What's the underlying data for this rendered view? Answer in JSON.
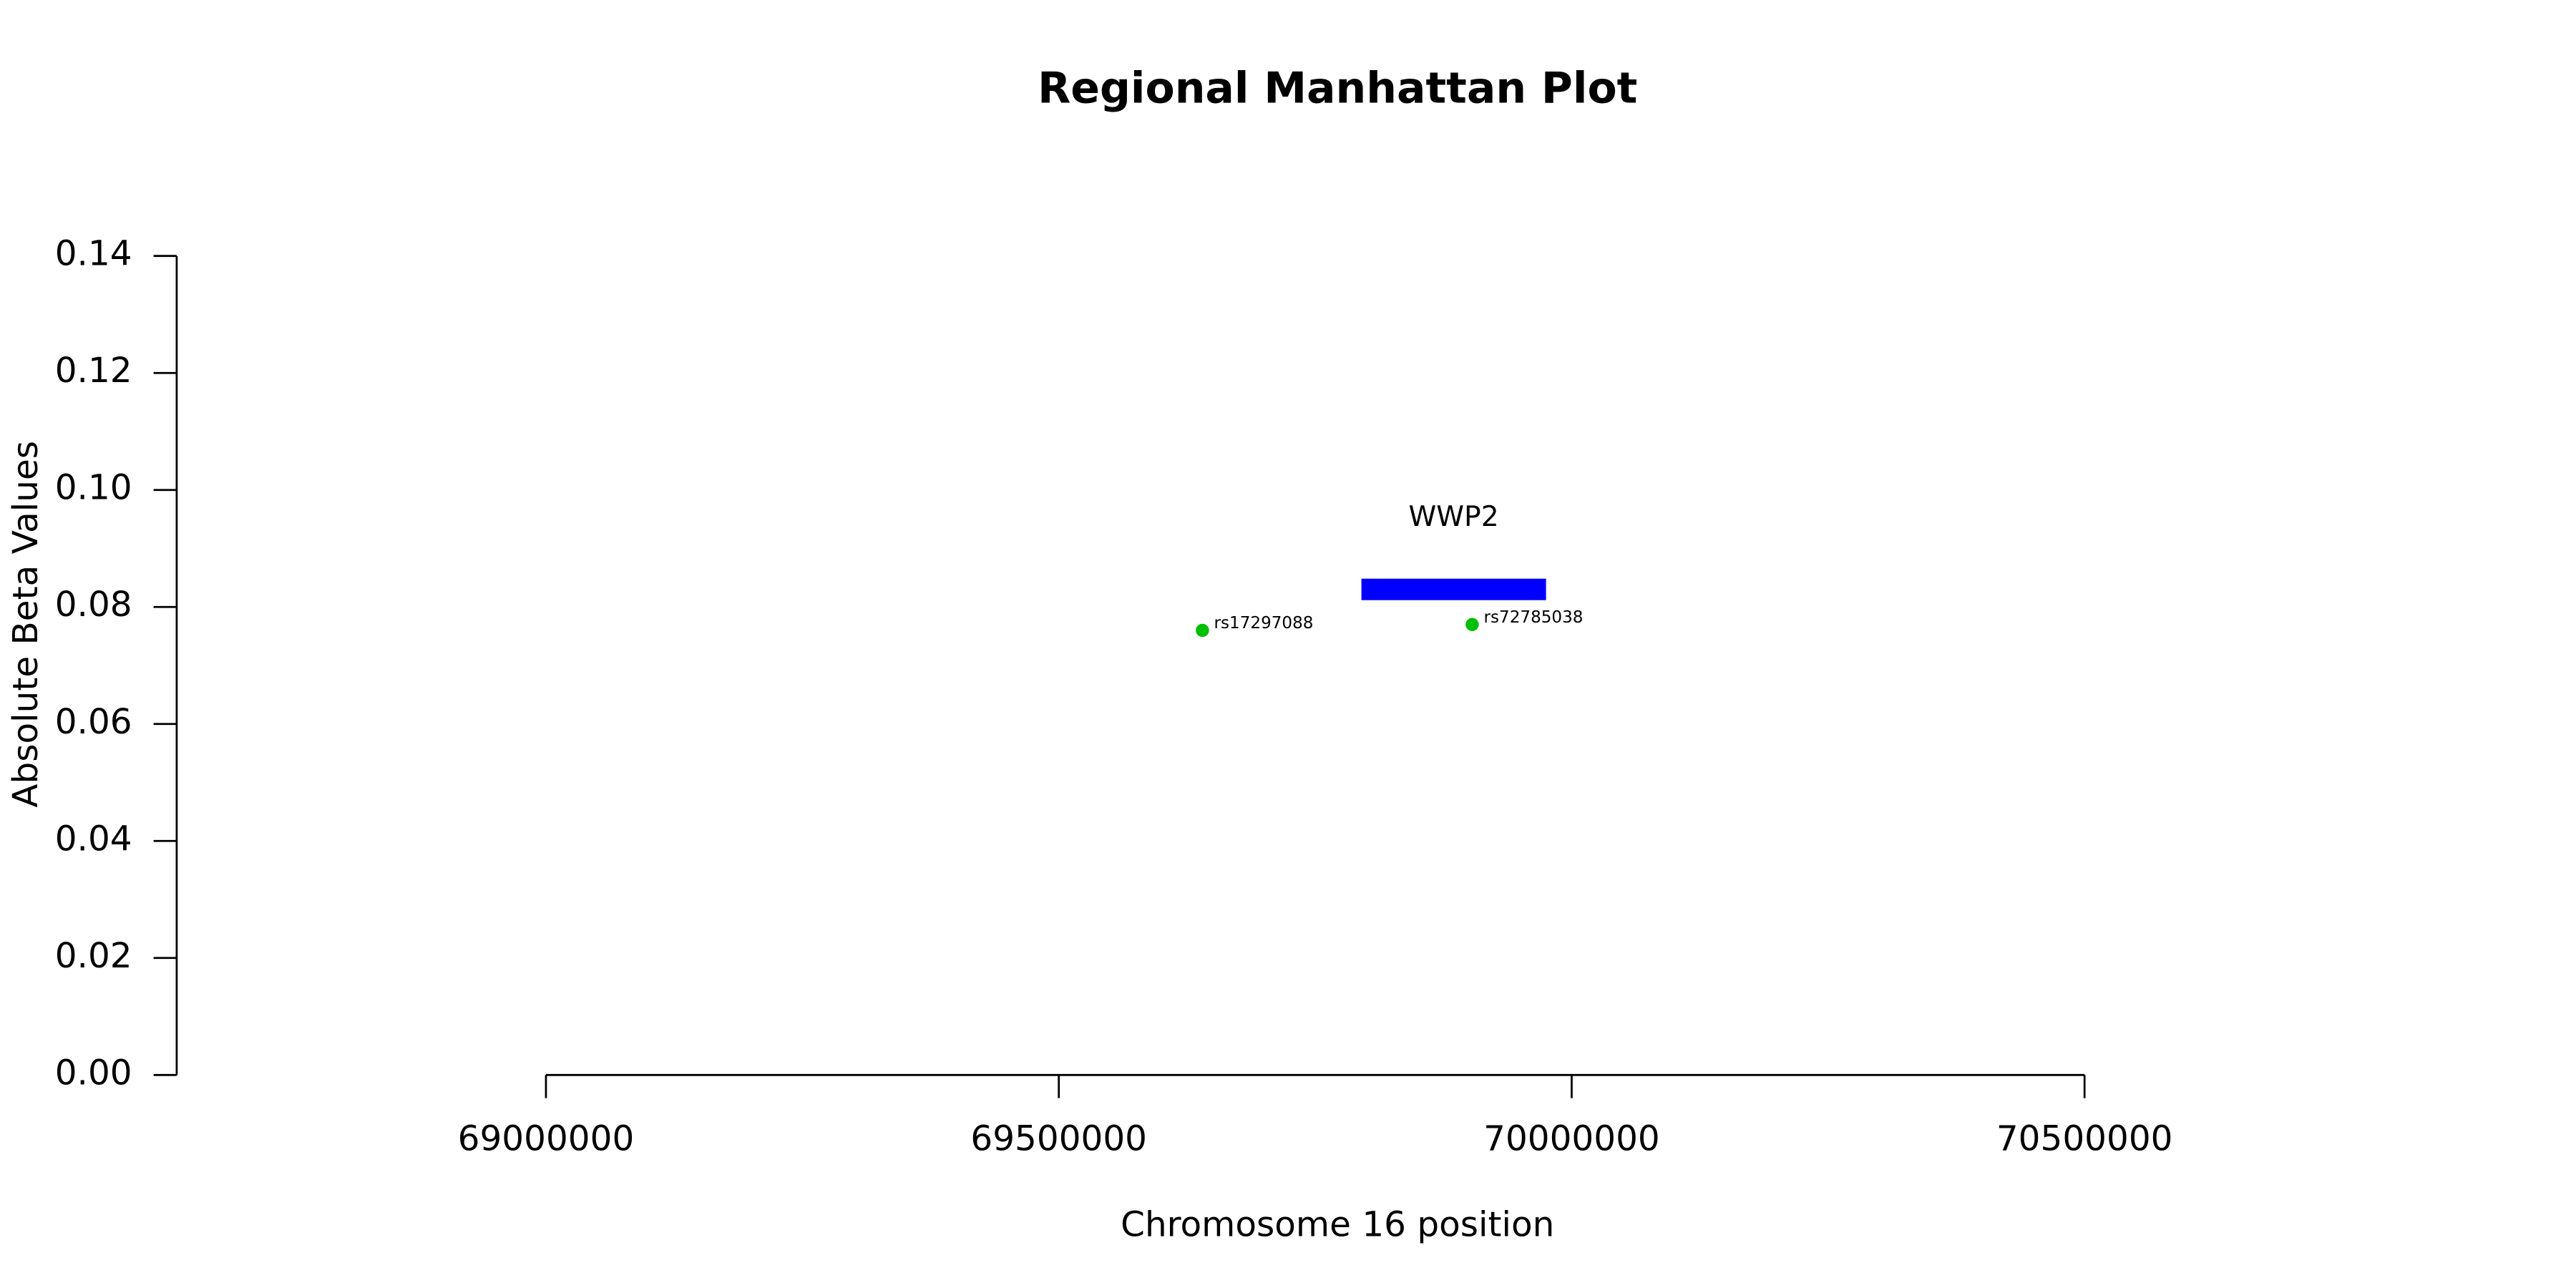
{
  "chart_data": {
    "type": "scatter",
    "title": "Regional Manhattan Plot",
    "x_label": "Chromosome 16 position",
    "y_label": "Absolute Beta Values",
    "xlim": [
      68640000,
      70860000
    ],
    "ylim": [
      0,
      0.14
    ],
    "xticks": [
      69000000,
      69500000,
      70000000,
      70500000
    ],
    "yticks": [
      {
        "value": 0,
        "label": "0.00"
      },
      0.02,
      0.04,
      0.06,
      0.08,
      {
        "value": 0.1,
        "label": "0.10"
      },
      0.12,
      0.14
    ],
    "series": [
      {
        "color": "#00c000",
        "labels": [
          "rs17297088",
          "rs72785038"
        ],
        "x": [
          69640000,
          69903000
        ],
        "values": [
          0.076,
          0.077
        ]
      }
    ],
    "genes": [
      {
        "name": "WWP2",
        "start": 69795000,
        "end": 69975000,
        "y": 0.083,
        "color": "#0000ff"
      }
    ]
  }
}
